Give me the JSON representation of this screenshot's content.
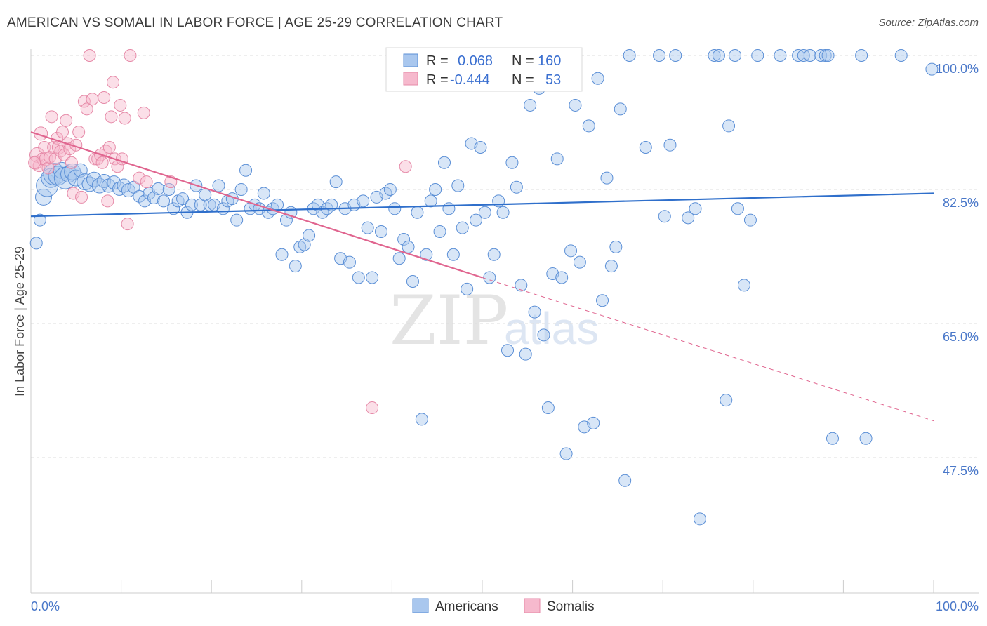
{
  "title": "AMERICAN VS SOMALI IN LABOR FORCE | AGE 25-29 CORRELATION CHART",
  "source": "Source: ZipAtlas.com",
  "watermark": {
    "zip": "ZIP",
    "atlas": "atlas"
  },
  "colors": {
    "americans_fill": "#a9c7ee",
    "americans_stroke": "#5b8fd6",
    "americans_line": "#2f6fcb",
    "somalis_fill": "#f6b9cd",
    "somalis_stroke": "#e68aa8",
    "somalis_line": "#e0658f",
    "tick_label": "#4a78c9",
    "grid": "#dddddd"
  },
  "legend": {
    "rows": [
      {
        "r_label": "R =",
        "r_value": "0.068",
        "n_label": "N =",
        "n_value": "160"
      },
      {
        "r_label": "R =",
        "r_value": "-0.444",
        "n_label": "N =",
        "n_value": "53"
      }
    ]
  },
  "bottom_legend": [
    "Americans",
    "Somalis"
  ],
  "chart_data": {
    "type": "scatter",
    "title": "AMERICAN VS SOMALI IN LABOR FORCE | AGE 25-29 CORRELATION CHART",
    "xlabel": "",
    "ylabel": "In Labor Force | Age 25-29",
    "xlim": [
      0,
      100
    ],
    "ylim": [
      34,
      100.5
    ],
    "x_tick_labels": [
      "0.0%",
      "100.0%"
    ],
    "y_ticks": [
      100,
      82.5,
      65,
      47.5
    ],
    "y_tick_labels": [
      "100.0%",
      "82.5%",
      "65.0%",
      "47.5%"
    ],
    "grid": true,
    "legend_position": "top-center",
    "series": [
      {
        "name": "Americans",
        "r": 0.068,
        "n": 160,
        "trend": {
          "x": [
            0,
            100
          ],
          "y": [
            79.0,
            82.0
          ],
          "dashed_from": null
        },
        "points": [
          [
            0.6,
            75.5,
            7
          ],
          [
            1.0,
            78.5,
            7
          ],
          [
            1.4,
            81.5,
            10
          ],
          [
            1.8,
            83.0,
            14
          ],
          [
            2.2,
            84.0,
            12
          ],
          [
            2.6,
            84.5,
            14
          ],
          [
            3.0,
            84.3,
            12
          ],
          [
            3.4,
            85.0,
            10
          ],
          [
            3.8,
            84.0,
            14
          ],
          [
            4.2,
            84.5,
            10
          ],
          [
            4.6,
            84.8,
            10
          ],
          [
            5.0,
            84.0,
            10
          ],
          [
            5.5,
            85.0,
            8
          ],
          [
            6.0,
            83.5,
            10
          ],
          [
            6.5,
            83.2,
            9
          ],
          [
            7.0,
            83.8,
            9
          ],
          [
            7.6,
            83.0,
            9
          ],
          [
            8.1,
            83.6,
            8
          ],
          [
            8.6,
            83.0,
            8
          ],
          [
            9.2,
            83.4,
            8
          ],
          [
            9.8,
            82.6,
            8
          ],
          [
            10.3,
            83.0,
            8
          ],
          [
            10.8,
            82.4,
            8
          ],
          [
            11.4,
            82.8,
            7
          ],
          [
            12.0,
            81.6,
            7
          ],
          [
            12.6,
            81.0,
            7
          ],
          [
            13.1,
            82.0,
            7
          ],
          [
            13.6,
            81.4,
            7
          ],
          [
            14.1,
            82.6,
            7
          ],
          [
            14.7,
            81.0,
            7
          ],
          [
            15.3,
            82.5,
            7
          ],
          [
            15.8,
            80.0,
            7
          ],
          [
            16.3,
            81.0,
            7
          ],
          [
            16.8,
            81.3,
            7
          ],
          [
            17.3,
            79.5,
            7
          ],
          [
            17.8,
            80.5,
            7
          ],
          [
            18.3,
            83.0,
            7
          ],
          [
            18.8,
            80.5,
            7
          ],
          [
            19.3,
            81.8,
            7
          ],
          [
            19.8,
            80.5,
            7
          ],
          [
            20.3,
            80.5,
            7
          ],
          [
            20.8,
            83.0,
            7
          ],
          [
            21.3,
            80.0,
            7
          ],
          [
            21.8,
            81.0,
            7
          ],
          [
            22.3,
            81.3,
            7
          ],
          [
            22.8,
            78.5,
            7
          ],
          [
            23.3,
            82.5,
            7
          ],
          [
            23.8,
            85.0,
            7
          ],
          [
            24.3,
            80.0,
            7
          ],
          [
            24.8,
            80.5,
            7
          ],
          [
            25.3,
            80.0,
            7
          ],
          [
            25.8,
            82.0,
            7
          ],
          [
            26.3,
            79.5,
            7
          ],
          [
            26.8,
            80.0,
            7
          ],
          [
            27.3,
            80.5,
            7
          ],
          [
            27.8,
            74.0,
            7
          ],
          [
            28.3,
            78.5,
            7
          ],
          [
            28.8,
            79.5,
            7
          ],
          [
            29.3,
            72.5,
            7
          ],
          [
            29.8,
            75.0,
            7
          ],
          [
            30.3,
            75.3,
            7
          ],
          [
            30.8,
            76.5,
            7
          ],
          [
            31.3,
            80.0,
            7
          ],
          [
            31.8,
            80.5,
            7
          ],
          [
            32.3,
            79.5,
            7
          ],
          [
            32.8,
            80.0,
            7
          ],
          [
            33.3,
            80.5,
            7
          ],
          [
            33.8,
            83.5,
            7
          ],
          [
            34.3,
            73.5,
            7
          ],
          [
            34.8,
            80.0,
            7
          ],
          [
            35.3,
            73.0,
            7
          ],
          [
            35.8,
            80.5,
            7
          ],
          [
            36.3,
            71.0,
            7
          ],
          [
            36.8,
            81.0,
            7
          ],
          [
            37.3,
            77.5,
            7
          ],
          [
            37.8,
            71.0,
            7
          ],
          [
            38.3,
            81.5,
            7
          ],
          [
            38.8,
            77.0,
            7
          ],
          [
            39.3,
            82.0,
            7
          ],
          [
            39.8,
            82.5,
            7
          ],
          [
            40.3,
            80.0,
            7
          ],
          [
            40.8,
            73.5,
            7
          ],
          [
            41.3,
            76.0,
            7
          ],
          [
            41.8,
            75.0,
            7
          ],
          [
            42.3,
            70.5,
            7
          ],
          [
            42.8,
            79.5,
            7
          ],
          [
            43.3,
            52.5,
            7
          ],
          [
            43.8,
            74.0,
            7
          ],
          [
            44.3,
            81.0,
            7
          ],
          [
            44.8,
            82.5,
            7
          ],
          [
            45.3,
            77.0,
            7
          ],
          [
            45.8,
            86.0,
            7
          ],
          [
            46.3,
            80.0,
            7
          ],
          [
            46.8,
            74.0,
            7
          ],
          [
            47.3,
            83.0,
            7
          ],
          [
            47.8,
            77.5,
            7
          ],
          [
            48.3,
            69.5,
            7
          ],
          [
            48.8,
            88.5,
            7
          ],
          [
            49.3,
            78.5,
            7
          ],
          [
            49.8,
            88.0,
            7
          ],
          [
            50.3,
            79.5,
            7
          ],
          [
            50.8,
            71.0,
            7
          ],
          [
            51.3,
            74.0,
            7
          ],
          [
            51.8,
            81.0,
            7
          ],
          [
            52.3,
            79.5,
            7
          ],
          [
            52.8,
            61.5,
            7
          ],
          [
            53.3,
            86.0,
            7
          ],
          [
            53.8,
            82.8,
            7
          ],
          [
            54.3,
            70.0,
            7
          ],
          [
            54.8,
            61.0,
            7
          ],
          [
            55.3,
            93.5,
            7
          ],
          [
            55.8,
            66.5,
            7
          ],
          [
            56.3,
            95.7,
            7
          ],
          [
            56.8,
            63.5,
            7
          ],
          [
            57.3,
            54.0,
            7
          ],
          [
            57.8,
            71.5,
            7
          ],
          [
            58.3,
            86.5,
            7
          ],
          [
            58.8,
            71.0,
            7
          ],
          [
            59.3,
            48.0,
            7
          ],
          [
            59.8,
            74.5,
            7
          ],
          [
            60.3,
            93.5,
            7
          ],
          [
            60.8,
            73.0,
            7
          ],
          [
            61.3,
            51.5,
            7
          ],
          [
            61.8,
            90.8,
            7
          ],
          [
            62.3,
            52.0,
            7
          ],
          [
            62.8,
            97.0,
            7
          ],
          [
            63.3,
            68.0,
            7
          ],
          [
            63.8,
            84.0,
            7
          ],
          [
            64.3,
            72.5,
            7
          ],
          [
            64.8,
            75.0,
            7
          ],
          [
            65.3,
            93.0,
            7
          ],
          [
            65.8,
            44.5,
            7
          ],
          [
            66.3,
            100.0,
            7
          ],
          [
            68.1,
            88.0,
            7
          ],
          [
            69.6,
            100.0,
            7
          ],
          [
            70.2,
            79.0,
            7
          ],
          [
            70.8,
            88.3,
            7
          ],
          [
            71.4,
            100.0,
            7
          ],
          [
            72.8,
            78.8,
            7
          ],
          [
            73.6,
            80.0,
            7
          ],
          [
            74.1,
            39.5,
            7
          ],
          [
            75.7,
            100.0,
            7
          ],
          [
            76.2,
            100.0,
            7
          ],
          [
            77.0,
            55.0,
            7
          ],
          [
            77.3,
            90.8,
            7
          ],
          [
            78.0,
            100.0,
            7
          ],
          [
            78.3,
            80.0,
            7
          ],
          [
            79.0,
            70.0,
            7
          ],
          [
            79.7,
            78.5,
            7
          ],
          [
            80.5,
            100.0,
            7
          ],
          [
            83.0,
            100.0,
            7
          ],
          [
            85.0,
            100.0,
            7
          ],
          [
            85.6,
            100.0,
            7
          ],
          [
            86.3,
            100.0,
            7
          ],
          [
            87.5,
            100.0,
            7
          ],
          [
            88.0,
            100.0,
            7
          ],
          [
            88.3,
            100.0,
            7
          ],
          [
            88.8,
            50.0,
            7
          ],
          [
            92.0,
            100.0,
            7
          ],
          [
            92.5,
            50.0,
            7
          ],
          [
            96.4,
            100.0,
            7
          ],
          [
            99.8,
            98.2,
            7
          ]
        ]
      },
      {
        "name": "Somalis",
        "r": -0.444,
        "n": 53,
        "trend": {
          "x": [
            0,
            50,
            100
          ],
          "y": [
            90.0,
            71.0,
            52.3
          ],
          "dashed_from": 50
        },
        "points": [
          [
            0.5,
            86.0,
            8
          ],
          [
            0.7,
            87.0,
            9
          ],
          [
            0.9,
            85.6,
            7
          ],
          [
            1.1,
            89.8,
            8
          ],
          [
            1.3,
            86.5,
            7
          ],
          [
            1.5,
            88.0,
            7
          ],
          [
            1.7,
            86.5,
            8
          ],
          [
            1.9,
            85.3,
            7
          ],
          [
            2.1,
            86.7,
            7
          ],
          [
            2.3,
            92.0,
            7
          ],
          [
            2.5,
            88.0,
            7
          ],
          [
            2.7,
            86.5,
            7
          ],
          [
            2.9,
            89.2,
            7
          ],
          [
            3.1,
            88.0,
            8
          ],
          [
            3.3,
            87.5,
            7
          ],
          [
            3.5,
            90.0,
            7
          ],
          [
            3.7,
            87.0,
            7
          ],
          [
            3.9,
            91.5,
            7
          ],
          [
            4.1,
            88.5,
            7
          ],
          [
            4.3,
            87.8,
            7
          ],
          [
            4.5,
            86.0,
            7
          ],
          [
            4.7,
            82.0,
            7
          ],
          [
            5.0,
            88.3,
            7
          ],
          [
            5.3,
            90.0,
            7
          ],
          [
            5.6,
            81.5,
            7
          ],
          [
            5.9,
            94.0,
            7
          ],
          [
            6.2,
            93.0,
            7
          ],
          [
            6.5,
            100.0,
            7
          ],
          [
            6.8,
            94.3,
            7
          ],
          [
            7.1,
            86.5,
            7
          ],
          [
            7.4,
            86.5,
            7
          ],
          [
            7.7,
            87.0,
            7
          ],
          [
            7.9,
            86.0,
            7
          ],
          [
            8.1,
            94.5,
            7
          ],
          [
            8.3,
            87.5,
            7
          ],
          [
            8.5,
            81.0,
            7
          ],
          [
            8.7,
            88.0,
            7
          ],
          [
            8.9,
            92.0,
            7
          ],
          [
            9.1,
            96.5,
            7
          ],
          [
            9.3,
            86.5,
            7
          ],
          [
            9.6,
            85.5,
            7
          ],
          [
            9.9,
            93.5,
            7
          ],
          [
            10.1,
            86.5,
            7
          ],
          [
            10.4,
            91.8,
            7
          ],
          [
            10.7,
            78.0,
            7
          ],
          [
            11.0,
            100.0,
            7
          ],
          [
            12.0,
            84.0,
            7
          ],
          [
            12.5,
            92.5,
            7
          ],
          [
            12.8,
            83.5,
            7
          ],
          [
            15.5,
            83.5,
            7
          ],
          [
            41.5,
            85.5,
            7
          ],
          [
            37.8,
            54.0,
            7
          ],
          [
            0.4,
            86.0,
            7
          ]
        ]
      }
    ]
  }
}
